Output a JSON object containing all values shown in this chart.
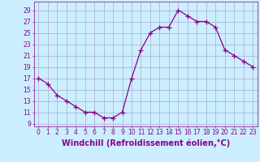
{
  "x": [
    0,
    1,
    2,
    3,
    4,
    5,
    6,
    7,
    8,
    9,
    10,
    11,
    12,
    13,
    14,
    15,
    16,
    17,
    18,
    19,
    20,
    21,
    22,
    23
  ],
  "y": [
    17,
    16,
    14,
    13,
    12,
    11,
    11,
    10,
    10,
    11,
    17,
    22,
    25,
    26,
    26,
    29,
    28,
    27,
    27,
    26,
    22,
    21,
    20,
    19
  ],
  "line_color": "#880088",
  "marker": "+",
  "marker_size": 4,
  "bg_color": "#cceeff",
  "grid_color": "#aaaacc",
  "xlabel": "Windchill (Refroidissement éolien,°C)",
  "xlabel_color": "#880088",
  "ylabel_ticks": [
    9,
    11,
    13,
    15,
    17,
    19,
    21,
    23,
    25,
    27,
    29
  ],
  "xtick_labels": [
    "0",
    "1",
    "2",
    "3",
    "4",
    "5",
    "6",
    "7",
    "8",
    "9",
    "10",
    "11",
    "12",
    "13",
    "14",
    "15",
    "16",
    "17",
    "18",
    "19",
    "20",
    "21",
    "22",
    "23"
  ],
  "ylim": [
    8.5,
    30.5
  ],
  "xlim": [
    -0.5,
    23.5
  ],
  "tick_color": "#880088",
  "tick_fontsize": 5.5,
  "xlabel_fontsize": 7.0
}
